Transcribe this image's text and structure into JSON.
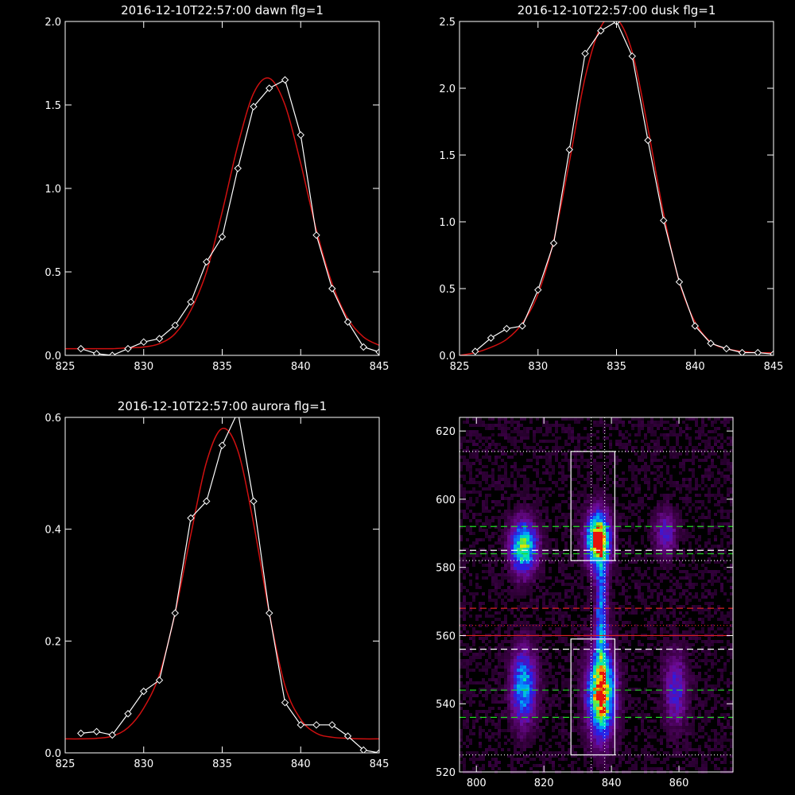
{
  "chart_data": [
    {
      "type": "line",
      "title": "2016-12-10T22:57:00 dawn flg=1",
      "xlim": [
        825,
        845
      ],
      "ylim": [
        0,
        2.0
      ],
      "xticks": [
        825,
        830,
        835,
        840,
        845
      ],
      "xtick_labels": [
        "825",
        "830",
        "835",
        "840",
        "845"
      ],
      "yticks": [
        0,
        0.5,
        1.0,
        1.5,
        2.0
      ],
      "ytick_labels": [
        "0.0",
        "0.5",
        "1.0",
        "1.5",
        "2.0"
      ],
      "series": [
        {
          "color": "#ffffff",
          "marker": "diamond",
          "x": [
            826,
            827,
            828,
            829,
            830,
            831,
            832,
            833,
            834,
            835,
            836,
            837,
            838,
            839,
            840,
            841,
            842,
            843,
            844,
            845
          ],
          "y": [
            0.04,
            0.01,
            0.0,
            0.04,
            0.08,
            0.1,
            0.18,
            0.32,
            0.56,
            0.71,
            1.12,
            1.49,
            1.6,
            1.65,
            1.32,
            0.72,
            0.4,
            0.2,
            0.05,
            0.02
          ]
        },
        {
          "color": "#d01010",
          "marker": "none",
          "x": [
            825,
            826,
            827,
            828,
            829,
            830,
            831,
            832,
            833,
            834,
            835,
            836,
            837,
            838,
            839,
            840,
            841,
            842,
            843,
            844,
            845
          ],
          "y": [
            0.04,
            0.04,
            0.04,
            0.04,
            0.045,
            0.05,
            0.07,
            0.13,
            0.27,
            0.5,
            0.86,
            1.26,
            1.57,
            1.66,
            1.5,
            1.15,
            0.75,
            0.43,
            0.22,
            0.11,
            0.06
          ]
        }
      ]
    },
    {
      "type": "line",
      "title": "2016-12-10T22:57:00 dusk flg=1",
      "xlim": [
        825,
        845
      ],
      "ylim": [
        0,
        2.5
      ],
      "xticks": [
        825,
        830,
        835,
        840,
        845
      ],
      "xtick_labels": [
        "825",
        "830",
        "835",
        "840",
        "845"
      ],
      "yticks": [
        0,
        0.5,
        1.0,
        1.5,
        2.0,
        2.5
      ],
      "ytick_labels": [
        "0.0",
        "0.5",
        "1.0",
        "1.5",
        "2.0",
        "2.5"
      ],
      "series": [
        {
          "color": "#ffffff",
          "marker": "diamond",
          "x": [
            826,
            827,
            828,
            829,
            830,
            831,
            832,
            833,
            834,
            835,
            836,
            837,
            838,
            839,
            840,
            841,
            842,
            843,
            844,
            845
          ],
          "y": [
            0.03,
            0.13,
            0.2,
            0.22,
            0.49,
            0.84,
            1.54,
            2.26,
            2.43,
            2.5,
            2.24,
            1.61,
            1.01,
            0.55,
            0.22,
            0.09,
            0.05,
            0.02,
            0.02,
            0.01
          ]
        },
        {
          "color": "#d01010",
          "marker": "none",
          "x": [
            825,
            826,
            827,
            828,
            829,
            830,
            831,
            832,
            833,
            834,
            835,
            836,
            837,
            838,
            839,
            840,
            841,
            842,
            843,
            844,
            845
          ],
          "y": [
            0.0,
            0.02,
            0.06,
            0.12,
            0.24,
            0.46,
            0.86,
            1.45,
            2.08,
            2.46,
            2.52,
            2.27,
            1.7,
            1.06,
            0.55,
            0.25,
            0.1,
            0.05,
            0.03,
            0.02,
            0.02
          ]
        }
      ]
    },
    {
      "type": "line",
      "title": "2016-12-10T22:57:00 aurora flg=1",
      "xlim": [
        825,
        845
      ],
      "ylim": [
        0,
        0.6
      ],
      "xticks": [
        825,
        830,
        835,
        840,
        845
      ],
      "xtick_labels": [
        "825",
        "830",
        "835",
        "840",
        "845"
      ],
      "yticks": [
        0,
        0.2,
        0.4,
        0.6
      ],
      "ytick_labels": [
        "0.0",
        "0.2",
        "0.4",
        "0.6"
      ],
      "series": [
        {
          "color": "#ffffff",
          "marker": "diamond",
          "x": [
            826,
            827,
            828,
            829,
            830,
            831,
            832,
            833,
            834,
            835,
            836,
            837,
            838,
            839,
            840,
            841,
            842,
            843,
            844,
            845
          ],
          "y": [
            0.035,
            0.038,
            0.032,
            0.07,
            0.11,
            0.13,
            0.25,
            0.42,
            0.45,
            0.55,
            0.61,
            0.45,
            0.25,
            0.09,
            0.05,
            0.05,
            0.05,
            0.03,
            0.005,
            0.0
          ]
        },
        {
          "color": "#d01010",
          "marker": "none",
          "x": [
            825,
            826,
            827,
            828,
            829,
            830,
            831,
            832,
            833,
            834,
            835,
            836,
            837,
            838,
            839,
            840,
            841,
            842,
            843,
            844,
            845
          ],
          "y": [
            0.025,
            0.025,
            0.026,
            0.03,
            0.045,
            0.08,
            0.14,
            0.25,
            0.39,
            0.52,
            0.58,
            0.54,
            0.41,
            0.25,
            0.12,
            0.06,
            0.035,
            0.028,
            0.026,
            0.025,
            0.025
          ]
        }
      ]
    },
    {
      "type": "heatmap",
      "title": "",
      "xlim": [
        795,
        876
      ],
      "ylim": [
        520,
        624
      ],
      "xticks": [
        800,
        820,
        840,
        860
      ],
      "xtick_labels": [
        "800",
        "820",
        "840",
        "860"
      ],
      "yticks": [
        520,
        540,
        560,
        580,
        600,
        620
      ],
      "ytick_labels": [
        "520",
        "540",
        "560",
        "580",
        "600",
        "620"
      ],
      "colormap": "rainbow",
      "blobs": [
        {
          "x": 814,
          "y": 586,
          "sx": 2.6,
          "sy": 5,
          "amp": 0.7
        },
        {
          "x": 814,
          "y": 545,
          "sx": 2.4,
          "sy": 7,
          "amp": 0.55
        },
        {
          "x": 836,
          "y": 588,
          "sx": 2.3,
          "sy": 5,
          "amp": 1.0
        },
        {
          "x": 837,
          "y": 543,
          "sx": 2.6,
          "sy": 8,
          "amp": 0.95
        },
        {
          "x": 837,
          "y": 566,
          "sx": 1.2,
          "sy": 14,
          "amp": 0.45
        },
        {
          "x": 856,
          "y": 590,
          "sx": 2,
          "sy": 4,
          "amp": 0.3
        },
        {
          "x": 859,
          "y": 544,
          "sx": 2.2,
          "sy": 7,
          "amp": 0.3
        }
      ],
      "boxes": [
        {
          "x0": 828,
          "x1": 841,
          "y0": 582,
          "y1": 614,
          "color": "#ffffff"
        },
        {
          "x0": 828,
          "x1": 841,
          "y0": 525,
          "y1": 559,
          "color": "#ffffff"
        }
      ],
      "hlines": [
        {
          "y": 614,
          "color": "#ffffff",
          "style": "dotted"
        },
        {
          "y": 592,
          "color": "#22dd22",
          "style": "dashed"
        },
        {
          "y": 585,
          "color": "#ffffff",
          "style": "dashed"
        },
        {
          "y": 584,
          "color": "#22dd22",
          "style": "dashed"
        },
        {
          "y": 582,
          "color": "#ffffff",
          "style": "dotted"
        },
        {
          "y": 568,
          "color": "#dd2222",
          "style": "dashed"
        },
        {
          "y": 563,
          "color": "#dd2222",
          "style": "dotted"
        },
        {
          "y": 560,
          "color": "#dd2222",
          "style": "solid"
        },
        {
          "y": 556,
          "color": "#ffffff",
          "style": "dashed"
        },
        {
          "y": 544,
          "color": "#22dd22",
          "style": "dashed"
        },
        {
          "y": 536,
          "color": "#22dd22",
          "style": "dashed"
        },
        {
          "y": 525,
          "color": "#ffffff",
          "style": "dotted"
        }
      ],
      "vlines": [
        {
          "x": 834,
          "color": "#ffffff",
          "style": "dotted"
        },
        {
          "x": 838,
          "color": "#ffffff",
          "style": "dotted"
        }
      ]
    }
  ]
}
